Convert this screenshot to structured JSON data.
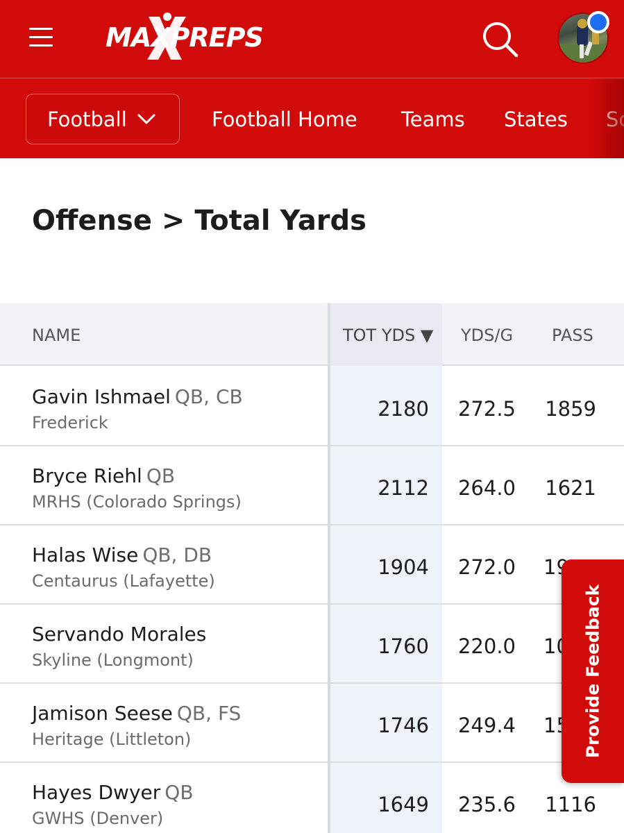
{
  "header": {
    "logo_text": "MAXPREPS"
  },
  "subnav": {
    "sport_selector": "Football",
    "links": [
      "Football Home",
      "Teams",
      "States",
      "Sc"
    ]
  },
  "page": {
    "title": "Offense > Total Yards"
  },
  "table": {
    "columns": {
      "name": "NAME",
      "tot_yds": "TOT YDS ▼",
      "yds_g": "YDS/G",
      "pass": "PASS"
    },
    "rows": [
      {
        "name": "Gavin Ishmael",
        "position": "QB, CB",
        "school": "Frederick",
        "tot_yds": "2180",
        "yds_g": "272.5",
        "pass": "1859"
      },
      {
        "name": "Bryce Riehl",
        "position": "QB",
        "school": "MRHS (Colorado Springs)",
        "tot_yds": "2112",
        "yds_g": "264.0",
        "pass": "1621"
      },
      {
        "name": "Halas Wise",
        "position": "QB, DB",
        "school": "Centaurus (Lafayette)",
        "tot_yds": "1904",
        "yds_g": "272.0",
        "pass": "19"
      },
      {
        "name": "Servando Morales",
        "position": "",
        "school": "Skyline (Longmont)",
        "tot_yds": "1760",
        "yds_g": "220.0",
        "pass": "10"
      },
      {
        "name": "Jamison Seese",
        "position": "QB, FS",
        "school": "Heritage (Littleton)",
        "tot_yds": "1746",
        "yds_g": "249.4",
        "pass": "15"
      },
      {
        "name": "Hayes Dwyer",
        "position": "QB",
        "school": "GWHS (Denver)",
        "tot_yds": "1649",
        "yds_g": "235.6",
        "pass": "1116"
      }
    ]
  },
  "feedback": {
    "label": "Provide Feedback"
  },
  "colors": {
    "brand_red": "#d10a0a",
    "notification_blue": "#1e6cf0",
    "sorted_column_bg": "#eef3fa"
  },
  "icons": [
    "hamburger-menu-icon",
    "search-icon",
    "chevron-down-icon",
    "sort-desc-icon"
  ]
}
